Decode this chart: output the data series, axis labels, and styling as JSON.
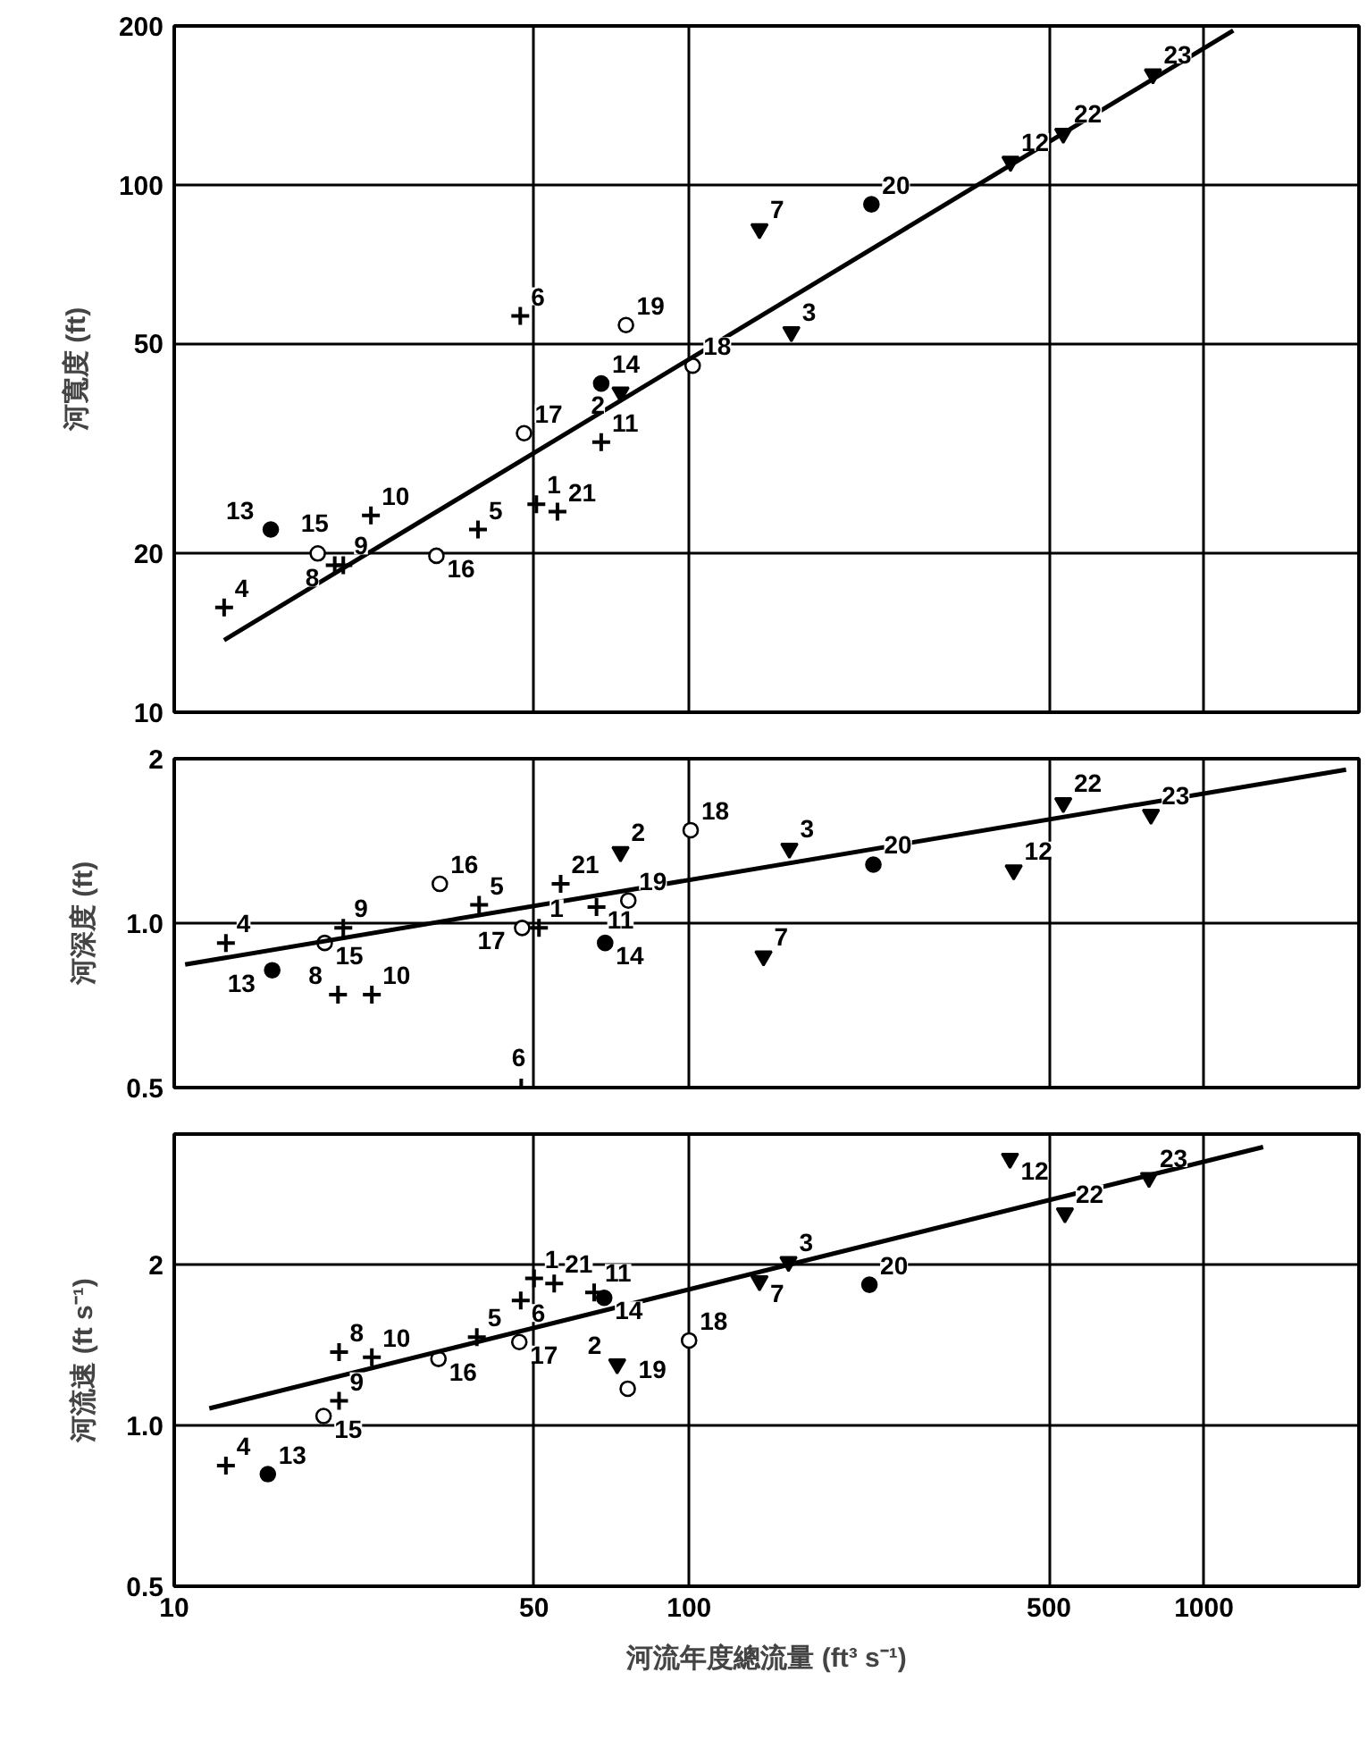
{
  "chart_data": [
    {
      "type": "scatter",
      "ylabel": "河寬度 (ft)",
      "log": "xy",
      "grid": true,
      "tick_labels": "y",
      "xlim": [
        10,
        2000
      ],
      "ylim": [
        10,
        200
      ],
      "xticks": [
        10,
        50,
        100,
        500,
        1000
      ],
      "yticks": [
        10,
        20,
        50,
        100,
        200
      ],
      "series": [
        {
          "marker": "cross",
          "color": "#000000",
          "x": [
            50.5,
            12.5,
            38.9,
            47,
            20.5,
            21.3,
            24.1,
            67.5,
            55.5
          ],
          "values": [
            24.8,
            15.8,
            22.2,
            56.4,
            19.0,
            19.0,
            23.6,
            32.5,
            24.0
          ]
        },
        {
          "marker": "circle",
          "color": "#ffffff",
          "x": [
            19.0,
            32.3,
            47.8,
            101.6,
            75.4
          ],
          "values": [
            20,
            19.8,
            33.8,
            45.4,
            54.2
          ]
        },
        {
          "marker": "circle",
          "color": "#000000",
          "x": [
            15.4,
            67.5,
            226
          ],
          "values": [
            22.2,
            42.0,
            91.8
          ]
        },
        {
          "marker": "triangle",
          "color": "#000000",
          "x": [
            73.6,
            158,
            137,
            421,
            533,
            796
          ],
          "values": [
            40.4,
            52.6,
            82.4,
            110.6,
            125,
            162
          ]
        },
        {
          "type": "line",
          "line_style": "solid",
          "color": "#000000",
          "x": [
            12.5,
            1140
          ],
          "values": [
            13.7,
            196
          ]
        }
      ],
      "annotations": [
        {
          "text": "1",
          "x": 50.5,
          "y": 24.8
        },
        {
          "text": "4",
          "x": 12.5,
          "y": 15.8
        },
        {
          "text": "5",
          "x": 38.9,
          "y": 22.2
        },
        {
          "text": "6",
          "x": 47,
          "y": 56.4
        },
        {
          "text": "8",
          "x": 20.5,
          "y": 19.0
        },
        {
          "text": "9",
          "x": 21.3,
          "y": 19.0
        },
        {
          "text": "10",
          "x": 24.1,
          "y": 23.6
        },
        {
          "text": "11",
          "x": 67.5,
          "y": 32.5
        },
        {
          "text": "21",
          "x": 55.5,
          "y": 24.0
        },
        {
          "text": "15",
          "x": 19.0,
          "y": 20
        },
        {
          "text": "16",
          "x": 32.3,
          "y": 19.8
        },
        {
          "text": "17",
          "x": 47.8,
          "y": 33.8
        },
        {
          "text": "18",
          "x": 101.6,
          "y": 45.4
        },
        {
          "text": "19",
          "x": 75.4,
          "y": 54.2
        },
        {
          "text": "13",
          "x": 15.4,
          "y": 22.2
        },
        {
          "text": "14",
          "x": 67.5,
          "y": 42.0
        },
        {
          "text": "20",
          "x": 226,
          "y": 91.8
        },
        {
          "text": "2",
          "x": 73.6,
          "y": 40.4
        },
        {
          "text": "3",
          "x": 158,
          "y": 52.6
        },
        {
          "text": "7",
          "x": 137,
          "y": 82.4
        },
        {
          "text": "12",
          "x": 421,
          "y": 110.6
        },
        {
          "text": "22",
          "x": 533,
          "y": 125
        },
        {
          "text": "23",
          "x": 796,
          "y": 162
        }
      ]
    },
    {
      "type": "scatter",
      "ylabel": "河深度 (ft)",
      "log": "xy",
      "grid": true,
      "tick_labels": "y",
      "xlim": [
        10,
        2000
      ],
      "ylim": [
        0.5,
        2
      ],
      "xticks": [
        10,
        50,
        100,
        500,
        1000
      ],
      "yticks": [
        0.5,
        {
          "value": 1,
          "label": "1.0"
        },
        2
      ],
      "series": [
        {
          "marker": "cross",
          "color": "#000000",
          "x": [
            51.1,
            12.6,
            39.1,
            47.2,
            20.8,
            21.3,
            24.2,
            66.1,
            56.3
          ],
          "values": [
            0.98,
            0.92,
            1.08,
            0.5,
            0.74,
            0.98,
            0.74,
            1.07,
            1.18
          ]
        },
        {
          "marker": "circle",
          "color": "#ffffff",
          "x": [
            19.6,
            32.8,
            47.4,
            100.7,
            76.2
          ],
          "values": [
            0.92,
            1.18,
            0.98,
            1.48,
            1.1
          ]
        },
        {
          "marker": "circle",
          "color": "#000000",
          "x": [
            15.5,
            68.7,
            228
          ],
          "values": [
            0.82,
            0.92,
            1.28
          ]
        },
        {
          "marker": "triangle",
          "color": "#000000",
          "x": [
            73.6,
            156.6,
            139.5,
            427,
            533,
            789
          ],
          "values": [
            1.35,
            1.37,
            0.87,
            1.25,
            1.66,
            1.58
          ]
        },
        {
          "type": "line",
          "line_style": "solid",
          "color": "#000000",
          "x": [
            10.5,
            1888
          ],
          "values": [
            0.84,
            1.91
          ]
        }
      ],
      "annotations": [
        {
          "text": "1",
          "x": 51.1,
          "y": 0.98
        },
        {
          "text": "4",
          "x": 12.6,
          "y": 0.92
        },
        {
          "text": "5",
          "x": 39.1,
          "y": 1.08
        },
        {
          "text": "6",
          "x": 47.2,
          "y": 0.5
        },
        {
          "text": "8",
          "x": 20.8,
          "y": 0.74
        },
        {
          "text": "9",
          "x": 21.3,
          "y": 0.98
        },
        {
          "text": "10",
          "x": 24.2,
          "y": 0.74
        },
        {
          "text": "11",
          "x": 66.1,
          "y": 1.07
        },
        {
          "text": "21",
          "x": 56.3,
          "y": 1.18
        },
        {
          "text": "15",
          "x": 19.6,
          "y": 0.92
        },
        {
          "text": "16",
          "x": 32.8,
          "y": 1.18
        },
        {
          "text": "17",
          "x": 47.4,
          "y": 0.98
        },
        {
          "text": "18",
          "x": 100.7,
          "y": 1.48
        },
        {
          "text": "19",
          "x": 76.2,
          "y": 1.1
        },
        {
          "text": "13",
          "x": 15.5,
          "y": 0.82
        },
        {
          "text": "14",
          "x": 68.7,
          "y": 0.92
        },
        {
          "text": "20",
          "x": 228,
          "y": 1.28
        },
        {
          "text": "2",
          "x": 73.6,
          "y": 1.35
        },
        {
          "text": "3",
          "x": 156.6,
          "y": 1.37
        },
        {
          "text": "7",
          "x": 139.5,
          "y": 0.87
        },
        {
          "text": "12",
          "x": 427,
          "y": 1.25
        },
        {
          "text": "22",
          "x": 533,
          "y": 1.66
        },
        {
          "text": "23",
          "x": 789,
          "y": 1.58
        }
      ]
    },
    {
      "type": "scatter",
      "ylabel": "河流速 (ft s⁻¹)",
      "xlabel": "河流年度總流量 (ft³ s⁻¹)",
      "log": "xy",
      "grid": true,
      "xlim": [
        10,
        2000
      ],
      "ylim": [
        0.5,
        3.5
      ],
      "xticks": [
        10,
        50,
        100,
        500,
        1000
      ],
      "yticks": [
        0.5,
        {
          "value": 1,
          "label": "1.0"
        },
        2
      ],
      "series": [
        {
          "marker": "cross",
          "color": "#000000",
          "x": [
            50,
            12.6,
            38.7,
            47.1,
            20.9,
            20.9,
            24.2,
            65.4,
            54.7
          ],
          "values": [
            1.88,
            0.84,
            1.46,
            1.71,
            1.37,
            1.11,
            1.34,
            1.77,
            1.84
          ]
        },
        {
          "marker": "circle",
          "color": "#ffffff",
          "x": [
            19.5,
            32.6,
            46.8,
            100,
            76
          ],
          "values": [
            1.04,
            1.33,
            1.43,
            1.44,
            1.17
          ]
        },
        {
          "marker": "circle",
          "color": "#000000",
          "x": [
            15.2,
            68.4,
            224
          ],
          "values": [
            0.81,
            1.73,
            1.83
          ]
        },
        {
          "marker": "triangle",
          "color": "#000000",
          "x": [
            72.5,
            156,
            137,
            420,
            537,
            782
          ],
          "values": [
            1.3,
            2.02,
            1.86,
            3.15,
            2.49,
            2.9
          ]
        },
        {
          "type": "line",
          "line_style": "solid",
          "color": "#000000",
          "x": [
            11.7,
            1303
          ],
          "values": [
            1.075,
            3.31
          ]
        }
      ],
      "annotations": [
        {
          "text": "1",
          "x": 50,
          "y": 1.88
        },
        {
          "text": "4",
          "x": 12.6,
          "y": 0.84
        },
        {
          "text": "5",
          "x": 38.7,
          "y": 1.46
        },
        {
          "text": "6",
          "x": 47.1,
          "y": 1.71
        },
        {
          "text": "8",
          "x": 20.9,
          "y": 1.37
        },
        {
          "text": "9",
          "x": 20.9,
          "y": 1.11
        },
        {
          "text": "10",
          "x": 24.2,
          "y": 1.34
        },
        {
          "text": "11",
          "x": 65.4,
          "y": 1.77
        },
        {
          "text": "21",
          "x": 54.7,
          "y": 1.84
        },
        {
          "text": "15",
          "x": 19.5,
          "y": 1.04
        },
        {
          "text": "16",
          "x": 32.6,
          "y": 1.33
        },
        {
          "text": "17",
          "x": 46.8,
          "y": 1.43
        },
        {
          "text": "18",
          "x": 100,
          "y": 1.44
        },
        {
          "text": "19",
          "x": 76,
          "y": 1.17
        },
        {
          "text": "13",
          "x": 15.2,
          "y": 0.81
        },
        {
          "text": "14",
          "x": 68.4,
          "y": 1.73
        },
        {
          "text": "20",
          "x": 224,
          "y": 1.83
        },
        {
          "text": "2",
          "x": 72.5,
          "y": 1.3
        },
        {
          "text": "3",
          "x": 156,
          "y": 2.02
        },
        {
          "text": "7",
          "x": 137,
          "y": 1.86
        },
        {
          "text": "12",
          "x": 420,
          "y": 3.15
        },
        {
          "text": "22",
          "x": 537,
          "y": 2.49
        },
        {
          "text": "23",
          "x": 782,
          "y": 2.9
        }
      ]
    }
  ]
}
